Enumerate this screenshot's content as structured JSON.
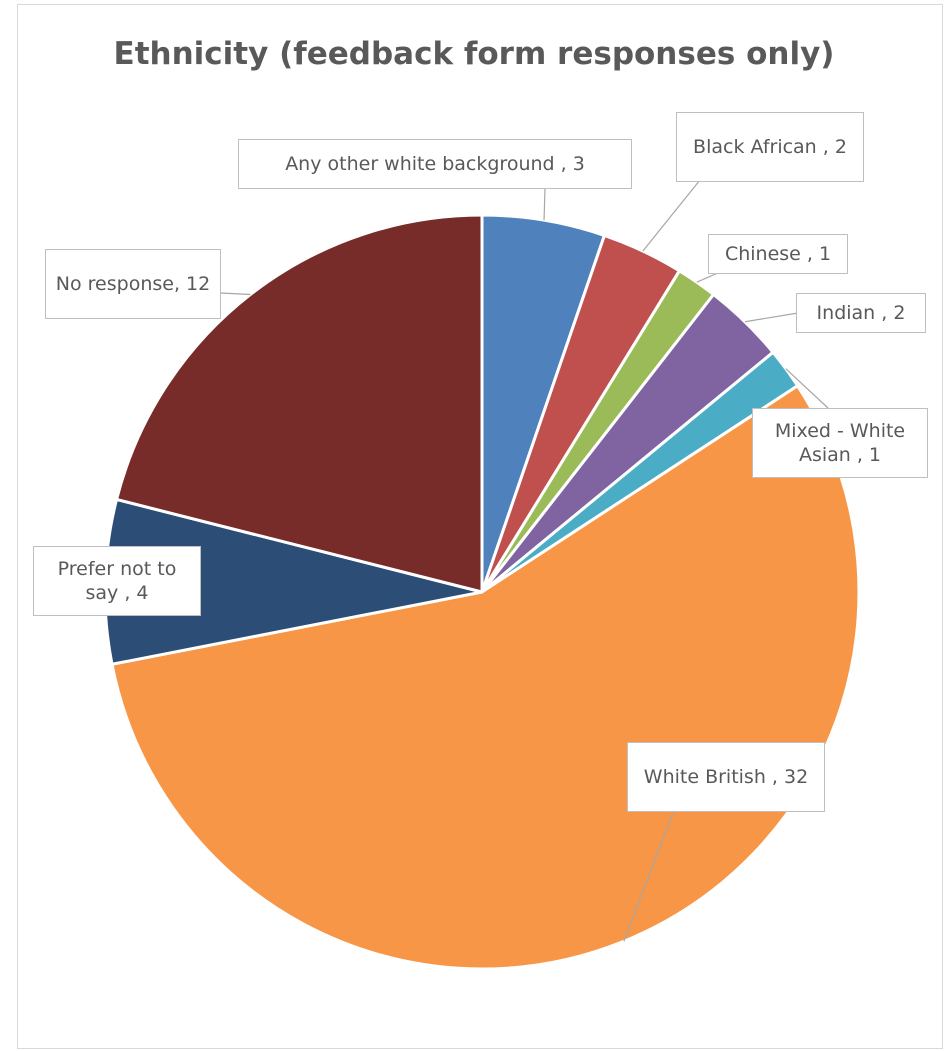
{
  "chart_data": {
    "type": "pie",
    "title": "Ethnicity (feedback form responses only)",
    "slices": [
      {
        "name": "Any other white background",
        "value": 3,
        "label": "Any other white background , 3",
        "color": "#4f81bd"
      },
      {
        "name": "Black African",
        "value": 2,
        "label": "Black African , 2",
        "color": "#c0504d"
      },
      {
        "name": "Chinese",
        "value": 1,
        "label": "Chinese , 1",
        "color": "#9bbb59"
      },
      {
        "name": "Indian",
        "value": 2,
        "label": "Indian , 2",
        "color": "#8064a2"
      },
      {
        "name": "Mixed - White Asian",
        "value": 1,
        "label": "Mixed - White Asian , 1",
        "color": "#4bacc6"
      },
      {
        "name": "White British",
        "value": 32,
        "label": "White British , 32",
        "color": "#f79646"
      },
      {
        "name": "Prefer not to say",
        "value": 4,
        "label": "Prefer not to say , 4",
        "color": "#2c4d75"
      },
      {
        "name": "No response",
        "value": 12,
        "label": "No response, 12",
        "color": "#772c2a"
      }
    ],
    "legend": "none",
    "data_labels": "outside with leader lines"
  }
}
